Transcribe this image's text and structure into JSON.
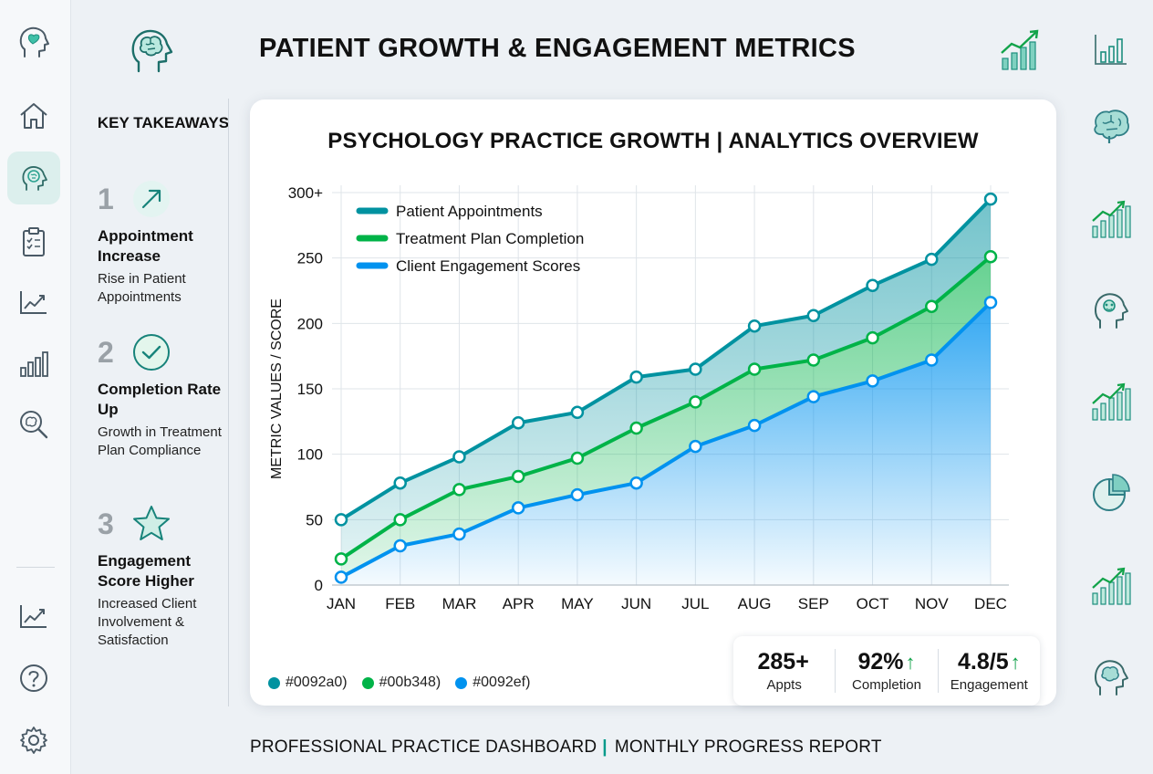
{
  "header": {
    "title": "PATIENT GROWTH & ENGAGEMENT METRICS"
  },
  "sidebar": {
    "items": [
      {
        "icon": "heart-head-icon"
      },
      {
        "icon": "home-icon"
      },
      {
        "icon": "brain-icon",
        "active": true
      },
      {
        "icon": "clipboard-icon"
      },
      {
        "icon": "line-chart-icon"
      },
      {
        "icon": "bar-chart-icon"
      },
      {
        "icon": "search-brain-icon"
      },
      {
        "icon": "trend-icon"
      },
      {
        "icon": "help-icon"
      },
      {
        "icon": "gear-icon"
      }
    ]
  },
  "takeaways": {
    "title": "KEY TAKEAWAYS",
    "items": [
      {
        "num": "1",
        "icon": "arrow-up-right-icon",
        "heading": "Appointment Increase",
        "desc": "Rise in Patient Appointments"
      },
      {
        "num": "2",
        "icon": "check-circle-icon",
        "heading": "Completion Rate Up",
        "desc": "Growth in Treatment Plan Compliance"
      },
      {
        "num": "3",
        "icon": "star-icon",
        "heading": "Engagement Score Higher",
        "desc": "Increased Client Involvement & Satisfaction"
      }
    ]
  },
  "chart_data": {
    "type": "area",
    "title": "PSYCHOLOGY PRACTICE GROWTH | ANALYTICS OVERVIEW",
    "xlabel": "",
    "ylabel": "METRIC VALUES / SCORE",
    "categories": [
      "JAN",
      "FEB",
      "MAR",
      "APR",
      "MAY",
      "JUN",
      "JUL",
      "AUG",
      "SEP",
      "OCT",
      "NOV",
      "DEC"
    ],
    "ylim": [
      0,
      300
    ],
    "yticks": [
      0,
      50,
      100,
      150,
      200,
      250,
      300
    ],
    "ytick_labels": [
      "0",
      "50",
      "100",
      "150",
      "200",
      "250",
      "300+"
    ],
    "grid": true,
    "legend_position": "top-left",
    "series": [
      {
        "name": "Patient Appointments",
        "color": "#0092a0",
        "values": [
          50,
          78,
          98,
          124,
          132,
          159,
          165,
          198,
          206,
          229,
          249,
          295
        ]
      },
      {
        "name": "Treatment Plan Completion",
        "color": "#00b348",
        "values": [
          20,
          50,
          73,
          83,
          97,
          120,
          140,
          165,
          172,
          189,
          213,
          251
        ]
      },
      {
        "name": "Client Engagement Scores",
        "color": "#0092ef",
        "values": [
          6,
          30,
          39,
          59,
          69,
          78,
          106,
          122,
          144,
          156,
          172,
          216
        ]
      }
    ]
  },
  "swatches": [
    {
      "label": "#0092a0)",
      "color": "#0092a0"
    },
    {
      "label": "#00b348)",
      "color": "#00b348"
    },
    {
      "label": "#0092ef)",
      "color": "#0092ef"
    }
  ],
  "kpis": [
    {
      "value": "285+",
      "arrow": "",
      "label": "Appts"
    },
    {
      "value": "92%",
      "arrow": "↑",
      "label": "Completion"
    },
    {
      "value": "4.8/5",
      "arrow": "↑",
      "label": "Engagement"
    }
  ],
  "footer": {
    "left": "PROFESSIONAL PRACTICE DASHBOARD",
    "sep": "|",
    "right": "MONTHLY PROGRESS REPORT"
  }
}
